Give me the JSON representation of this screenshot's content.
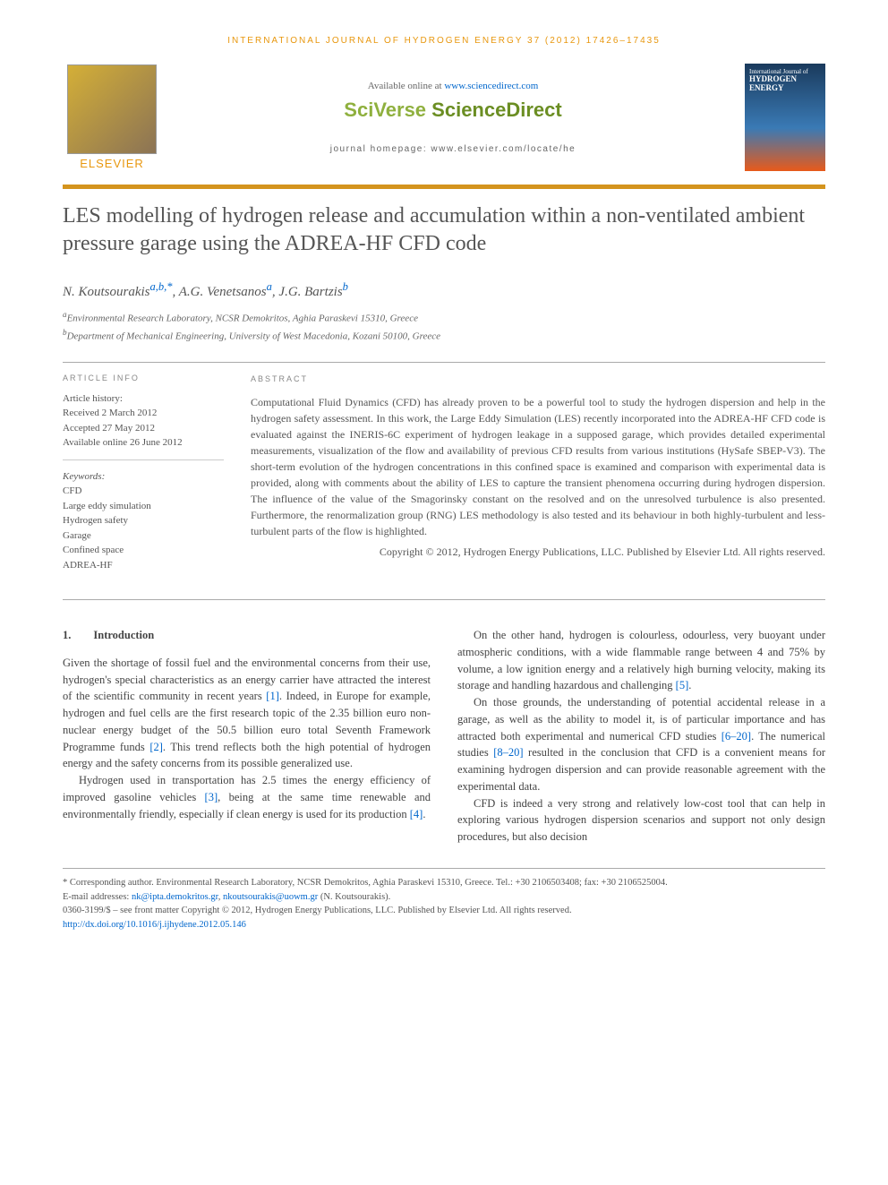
{
  "running_header": "INTERNATIONAL JOURNAL OF HYDROGEN ENERGY 37 (2012) 17426–17435",
  "header": {
    "available_prefix": "Available online at ",
    "available_link": "www.sciencedirect.com",
    "sciverse_a": "SciVerse ",
    "sciverse_b": "ScienceDirect",
    "homepage": "journal homepage: www.elsevier.com/locate/he",
    "elsevier": "ELSEVIER",
    "cover_label": "International Journal of",
    "cover_title": "HYDROGEN ENERGY"
  },
  "title": "LES modelling of hydrogen release and accumulation within a non-ventilated ambient pressure garage using the ADREA-HF CFD code",
  "authors": {
    "a1_name": "N. Koutsourakis",
    "a1_sup": "a,b,*",
    "a2_name": ", A.G. Venetsanos",
    "a2_sup": "a",
    "a3_name": ", J.G. Bartzis",
    "a3_sup": "b"
  },
  "affiliations": {
    "a": "Environmental Research Laboratory, NCSR Demokritos, Aghia Paraskevi 15310, Greece",
    "b": "Department of Mechanical Engineering, University of West Macedonia, Kozani 50100, Greece"
  },
  "info": {
    "heading": "ARTICLE INFO",
    "history_label": "Article history:",
    "received": "Received 2 March 2012",
    "accepted": "Accepted 27 May 2012",
    "online": "Available online 26 June 2012",
    "keywords_label": "Keywords:",
    "keywords": [
      "CFD",
      "Large eddy simulation",
      "Hydrogen safety",
      "Garage",
      "Confined space",
      "ADREA-HF"
    ]
  },
  "abstract": {
    "heading": "ABSTRACT",
    "text": "Computational Fluid Dynamics (CFD) has already proven to be a powerful tool to study the hydrogen dispersion and help in the hydrogen safety assessment. In this work, the Large Eddy Simulation (LES) recently incorporated into the ADREA-HF CFD code is evaluated against the INERIS-6C experiment of hydrogen leakage in a supposed garage, which provides detailed experimental measurements, visualization of the flow and availability of previous CFD results from various institutions (HySafe SBEP-V3). The short-term evolution of the hydrogen concentrations in this confined space is examined and comparison with experimental data is provided, along with comments about the ability of LES to capture the transient phenomena occurring during hydrogen dispersion. The influence of the value of the Smagorinsky constant on the resolved and on the unresolved turbulence is also presented. Furthermore, the renormalization group (RNG) LES methodology is also tested and its behaviour in both highly-turbulent and less-turbulent parts of the flow is highlighted.",
    "copyright": "Copyright © 2012, Hydrogen Energy Publications, LLC. Published by Elsevier Ltd. All rights reserved."
  },
  "body": {
    "section_num": "1.",
    "section_title": "Introduction",
    "col1_p1a": "Given the shortage of fossil fuel and the environmental concerns from their use, hydrogen's special characteristics as an energy carrier have attracted the interest of the scientific community in recent years ",
    "ref1": "[1]",
    "col1_p1b": ". Indeed, in Europe for example, hydrogen and fuel cells are the first research topic of the 2.35 billion euro non-nuclear energy budget of the 50.5 billion euro total Seventh Framework Programme funds ",
    "ref2": "[2]",
    "col1_p1c": ". This trend reflects both the high potential of hydrogen energy and the safety concerns from its possible generalized use.",
    "col1_p2a": "Hydrogen used in transportation has 2.5 times the energy efficiency of improved gasoline vehicles ",
    "ref3": "[3]",
    "col1_p2b": ", being at the same time renewable and environmentally friendly, especially if clean energy is used for its production ",
    "ref4": "[4]",
    "col1_p2c": ".",
    "col2_p1a": "On the other hand, hydrogen is colourless, odourless, very buoyant under atmospheric conditions, with a wide flammable range between 4 and 75% by volume, a low ignition energy and a relatively high burning velocity, making its storage and handling hazardous and challenging ",
    "ref5": "[5]",
    "col2_p1b": ".",
    "col2_p2a": "On those grounds, the understanding of potential accidental release in a garage, as well as the ability to model it, is of particular importance and has attracted both experimental and numerical CFD studies ",
    "ref6_20": "[6–20]",
    "col2_p2b": ". The numerical studies ",
    "ref8_20": "[8–20]",
    "col2_p2c": " resulted in the conclusion that CFD is a convenient means for examining hydrogen dispersion and can provide reasonable agreement with the experimental data.",
    "col2_p3": "CFD is indeed a very strong and relatively low-cost tool that can help in exploring various hydrogen dispersion scenarios and support not only design procedures, but also decision"
  },
  "footnotes": {
    "corr": "* Corresponding author. Environmental Research Laboratory, NCSR Demokritos, Aghia Paraskevi 15310, Greece. Tel.: +30 2106503408; fax: +30 2106525004.",
    "email_label": "E-mail addresses: ",
    "email1": "nk@ipta.demokritos.gr",
    "email_sep": ", ",
    "email2": "nkoutsourakis@uowm.gr",
    "email_suffix": " (N. Koutsourakis).",
    "issn": "0360-3199/$ – see front matter Copyright © 2012, Hydrogen Energy Publications, LLC. Published by Elsevier Ltd. All rights reserved.",
    "doi": "http://dx.doi.org/10.1016/j.ijhydene.2012.05.146"
  }
}
